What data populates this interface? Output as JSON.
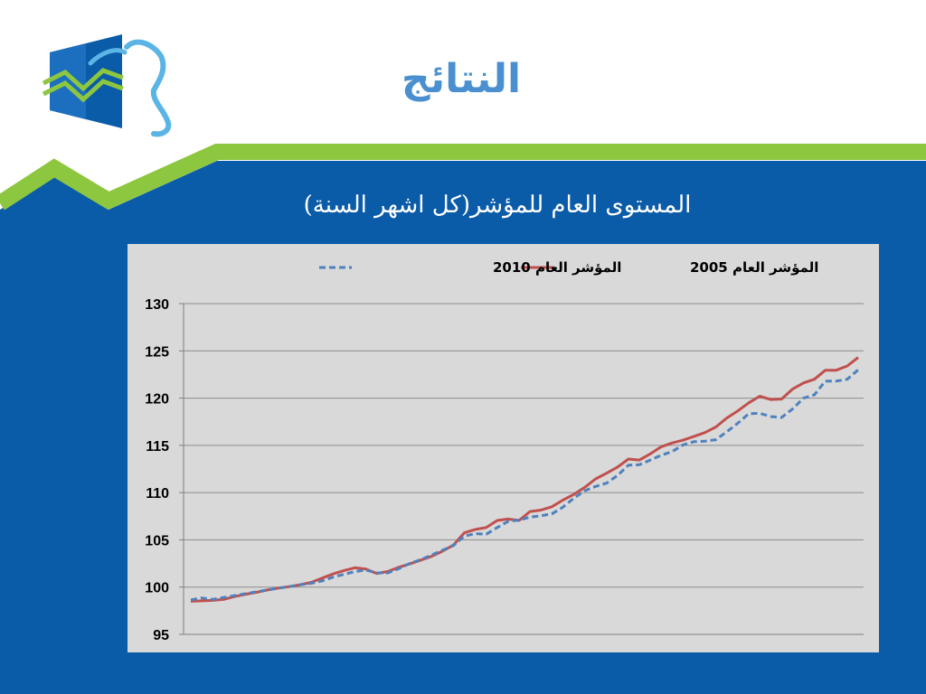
{
  "slide": {
    "title": "النتائج",
    "logo_icon": "chart-logo-icon",
    "colors": {
      "blue": "#0a5ba8",
      "green": "#8dc63f",
      "title": "#4a90d0",
      "plot_bg": "#d9d9d9"
    }
  },
  "chart_data": {
    "type": "line",
    "title": "المستوى العام للمؤشر(كل اشهر السنة)",
    "xlabel": "",
    "ylabel": "",
    "ylim": [
      95,
      130
    ],
    "yticks": [
      95,
      100,
      105,
      110,
      115,
      120,
      125,
      130
    ],
    "grid": true,
    "legend": "top",
    "series": [
      {
        "name": "المؤشر العام 2005",
        "color": "#c0504d",
        "dash": "solid",
        "values": [
          98.5,
          98.55,
          98.6,
          98.7,
          99.0,
          99.25,
          99.45,
          99.7,
          99.9,
          100.05,
          100.25,
          100.5,
          100.95,
          101.4,
          101.75,
          102.05,
          101.9,
          101.45,
          101.65,
          102.1,
          102.45,
          102.85,
          103.25,
          103.8,
          104.45,
          105.75,
          106.1,
          106.3,
          107.05,
          107.2,
          107.05,
          108.0,
          108.15,
          108.5,
          109.2,
          109.8,
          110.55,
          111.45,
          112.05,
          112.7,
          113.55,
          113.45,
          114.1,
          114.85,
          115.25,
          115.55,
          115.95,
          116.35,
          116.95,
          117.9,
          118.65,
          119.5,
          120.2,
          119.85,
          119.9,
          120.95,
          121.6,
          122.0,
          122.95,
          122.95,
          123.4,
          124.3
        ]
      },
      {
        "name": "المؤشر العام 2010",
        "color": "#4f81bd",
        "dash": "dashed",
        "values": [
          98.65,
          98.85,
          98.7,
          98.9,
          99.1,
          99.3,
          99.5,
          99.7,
          99.9,
          100.05,
          100.25,
          100.4,
          100.65,
          101.05,
          101.35,
          101.65,
          101.8,
          101.5,
          101.5,
          101.95,
          102.5,
          102.9,
          103.4,
          103.9,
          104.4,
          105.4,
          105.65,
          105.6,
          106.3,
          106.95,
          107.1,
          107.4,
          107.55,
          107.75,
          108.45,
          109.4,
          110.2,
          110.65,
          111.0,
          111.8,
          112.9,
          112.95,
          113.45,
          113.95,
          114.35,
          115.05,
          115.4,
          115.45,
          115.6,
          116.45,
          117.35,
          118.35,
          118.4,
          118.05,
          117.95,
          118.85,
          120.0,
          120.35,
          121.8,
          121.8,
          122.0,
          123.0
        ]
      }
    ]
  }
}
